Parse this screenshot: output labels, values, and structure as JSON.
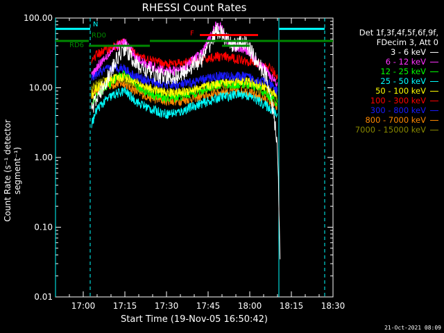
{
  "chart_data": {
    "type": "line",
    "title": "RHESSI Count Rates",
    "xlabel": "Start Time (19-Nov-05 16:50:42)",
    "ylabel": "Count Rate (s⁻¹ detector segment⁻¹)",
    "yscale": "log",
    "ylim": [
      0.01,
      100
    ],
    "xlim_minutes": [
      -10,
      90
    ],
    "x_tick_labels": [
      "17:00",
      "17:15",
      "17:30",
      "17:45",
      "18:00",
      "18:15",
      "18:30"
    ],
    "x_tick_values_minutes": [
      0,
      15,
      30,
      45,
      60,
      75,
      90
    ],
    "y_tick_labels": [
      "0.01",
      "0.10",
      "1.00",
      "10.00",
      "100.00"
    ],
    "y_tick_values": [
      0.01,
      0.1,
      1,
      10,
      100
    ],
    "grid": false,
    "legend_position": "top-right",
    "legend_header": [
      "Det 1f,3f,4f,5f,6f,9f,",
      "FDecim 3, Att 0"
    ],
    "series": [
      {
        "name": "3 - 6 keV",
        "color": "#ffffff",
        "x": [
          3,
          5,
          8,
          10,
          13,
          15,
          17,
          20,
          25,
          30,
          35,
          40,
          43,
          46,
          48,
          50,
          52,
          55,
          58,
          60,
          63,
          66,
          68,
          69,
          70,
          71
        ],
        "y": [
          5,
          7,
          12,
          17,
          30,
          38,
          28,
          20,
          16,
          14,
          15,
          22,
          26,
          45,
          66,
          60,
          45,
          40,
          46,
          35,
          22,
          15,
          6,
          3,
          1.5,
          0.025
        ]
      },
      {
        "name": "6 - 12 keV",
        "color": "#ff33ff",
        "x": [
          3,
          5,
          8,
          10,
          13,
          15,
          17,
          20,
          25,
          30,
          35,
          40,
          43,
          46,
          48,
          50,
          52,
          55,
          58,
          60,
          63,
          66,
          68,
          70
        ],
        "y": [
          15,
          20,
          28,
          33,
          42,
          45,
          36,
          25,
          20,
          17,
          18,
          26,
          32,
          55,
          85,
          70,
          48,
          38,
          35,
          33,
          22,
          18,
          14,
          12
        ]
      },
      {
        "name": "12 - 25 keV",
        "color": "#00ff00",
        "x": [
          3,
          5,
          8,
          10,
          13,
          15,
          17,
          20,
          25,
          30,
          35,
          40,
          43,
          46,
          48,
          50,
          52,
          55,
          58,
          60,
          63,
          66,
          68,
          70
        ],
        "y": [
          6,
          8,
          10,
          12,
          15,
          16,
          13,
          10,
          8,
          7,
          7.5,
          8.5,
          9,
          10.5,
          11,
          11.5,
          11,
          11,
          11.5,
          11,
          10,
          8,
          7,
          6
        ]
      },
      {
        "name": "25 - 50 keV",
        "color": "#00ffff",
        "x": [
          3,
          5,
          8,
          10,
          13,
          15,
          17,
          20,
          25,
          30,
          35,
          40,
          43,
          46,
          48,
          50,
          52,
          55,
          58,
          60,
          63,
          66,
          68,
          70
        ],
        "y": [
          3,
          5,
          6.5,
          7.5,
          8.5,
          9,
          7.5,
          6,
          4.8,
          4.2,
          4.5,
          5.5,
          6,
          6.5,
          7,
          7.5,
          7.5,
          8,
          8,
          7.5,
          6.5,
          5.5,
          4.8,
          4
        ]
      },
      {
        "name": "50 - 100 keV",
        "color": "#ffff00",
        "x": [
          3,
          5,
          8,
          10,
          13,
          15,
          17,
          20,
          25,
          30,
          35,
          40,
          43,
          46,
          48,
          50,
          52,
          55,
          58,
          60,
          63,
          66,
          68,
          70
        ],
        "y": [
          8,
          10,
          12,
          13,
          14,
          14.5,
          13,
          11.5,
          9.5,
          8.5,
          8.5,
          9.5,
          10,
          11,
          11.5,
          12,
          12,
          12.5,
          12.5,
          12,
          11,
          10,
          9,
          8
        ]
      },
      {
        "name": "100 - 300 keV",
        "color": "#ff0000",
        "x": [
          3,
          5,
          8,
          10,
          13,
          15,
          17,
          20,
          25,
          30,
          35,
          40,
          43,
          46,
          48,
          50,
          52,
          55,
          58,
          60,
          63,
          66,
          68,
          70
        ],
        "y": [
          25,
          30,
          35,
          37,
          42,
          44,
          35,
          28,
          24,
          22,
          22,
          24,
          25,
          27,
          28,
          28,
          27,
          26,
          25,
          24,
          22,
          20,
          18,
          14
        ]
      },
      {
        "name": "300 - 800 keV",
        "color": "#1a1aff",
        "x": [
          3,
          5,
          8,
          10,
          13,
          15,
          17,
          20,
          25,
          30,
          35,
          40,
          43,
          46,
          48,
          50,
          52,
          55,
          58,
          60,
          63,
          66,
          68,
          70
        ],
        "y": [
          14,
          16,
          18,
          19,
          19.5,
          19,
          16,
          14,
          12,
          11,
          11,
          12,
          13,
          14,
          14.5,
          15,
          14.5,
          14.5,
          14.5,
          14,
          13,
          12,
          10.5,
          9
        ]
      },
      {
        "name": "800 - 7000 keV",
        "color": "#ff8800",
        "x": [
          3,
          5,
          8,
          10,
          13,
          15,
          17,
          20,
          25,
          30,
          35,
          40,
          43,
          46,
          48,
          50,
          52,
          55,
          58,
          60,
          63,
          66,
          68,
          70
        ],
        "y": [
          8,
          9,
          10.5,
          11,
          11.5,
          11.5,
          10,
          8.5,
          7,
          6.5,
          6.5,
          7.2,
          7.5,
          8,
          8.5,
          8.8,
          8.8,
          9,
          9,
          8.5,
          7.5,
          6.8,
          6,
          5.2
        ]
      },
      {
        "name": "7000 - 15000 keV",
        "color": "#888800",
        "x": [
          3,
          5,
          8,
          10,
          13,
          15,
          17,
          20,
          25,
          30,
          35,
          40,
          43,
          46,
          48,
          50,
          52,
          55,
          58,
          60,
          63,
          66,
          68,
          70
        ],
        "y": [
          10,
          11,
          12.5,
          13,
          13.5,
          13.5,
          12,
          10.5,
          9,
          8.5,
          8.5,
          9.2,
          9.5,
          10,
          10.5,
          10.8,
          10.8,
          11,
          11,
          10.5,
          9.5,
          8.8,
          8,
          7
        ]
      }
    ],
    "annotations": {
      "N": {
        "label": "N",
        "color": "#00ffff",
        "x_start": -10,
        "x_end": 2.5,
        "y": 70
      },
      "N2": {
        "color": "#00ffff",
        "x_start": 70.5,
        "x_end": 87,
        "y": 70
      },
      "RD0": {
        "label": "RD0",
        "color": "#008800",
        "x_start": -10,
        "x_end": 2,
        "y": 47
      },
      "RD0b": {
        "color": "#008800",
        "x_start": 24,
        "x_end": 90,
        "y": 47
      },
      "RD6": {
        "label": "RD6",
        "color": "#008800",
        "x_start": 2,
        "x_end": 24,
        "y": 40
      },
      "RD6b": {
        "color": "#008800",
        "x_start": 50,
        "x_end": 60,
        "y": 40
      },
      "F": {
        "label": "F",
        "color": "#ff0000",
        "x_start": 42,
        "x_end": 63,
        "y": 57
      },
      "cyan_solid_lines": [
        -10,
        70.5
      ],
      "cyan_dashed_lines": [
        2.5,
        87
      ]
    }
  },
  "timestamp": "21-Oct-2021 08:09"
}
